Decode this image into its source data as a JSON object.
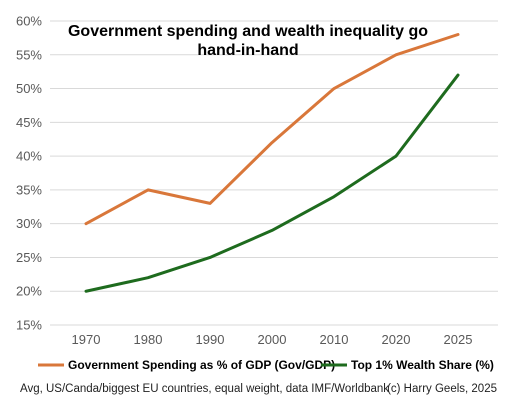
{
  "chart_data": {
    "type": "line",
    "title_line1": "Government spending and wealth inequality go",
    "title_line2": "hand-in-hand",
    "categories": [
      "1970",
      "1980",
      "1990",
      "2000",
      "2010",
      "2020",
      "2025"
    ],
    "y_ticks": [
      "15%",
      "20%",
      "25%",
      "30%",
      "35%",
      "40%",
      "45%",
      "50%",
      "55%",
      "60%"
    ],
    "ylim": [
      15,
      60
    ],
    "grid": true,
    "legend_position": "bottom",
    "series": [
      {
        "name": "Government Spending as % of GDP (Gov/GDP)",
        "color": "#D9773A",
        "values": [
          30,
          35,
          33,
          42,
          50,
          55,
          58
        ]
      },
      {
        "name": "Top 1% Wealth Share (%)",
        "color": "#1E6B1E",
        "values": [
          20,
          22,
          25,
          29,
          34,
          40,
          52
        ]
      }
    ]
  },
  "footer": {
    "source": "Avg, US/Canda/biggest EU countries, equal weight, data IMF/Worldbank",
    "credit": "(c) Harry Geels, 2025"
  }
}
